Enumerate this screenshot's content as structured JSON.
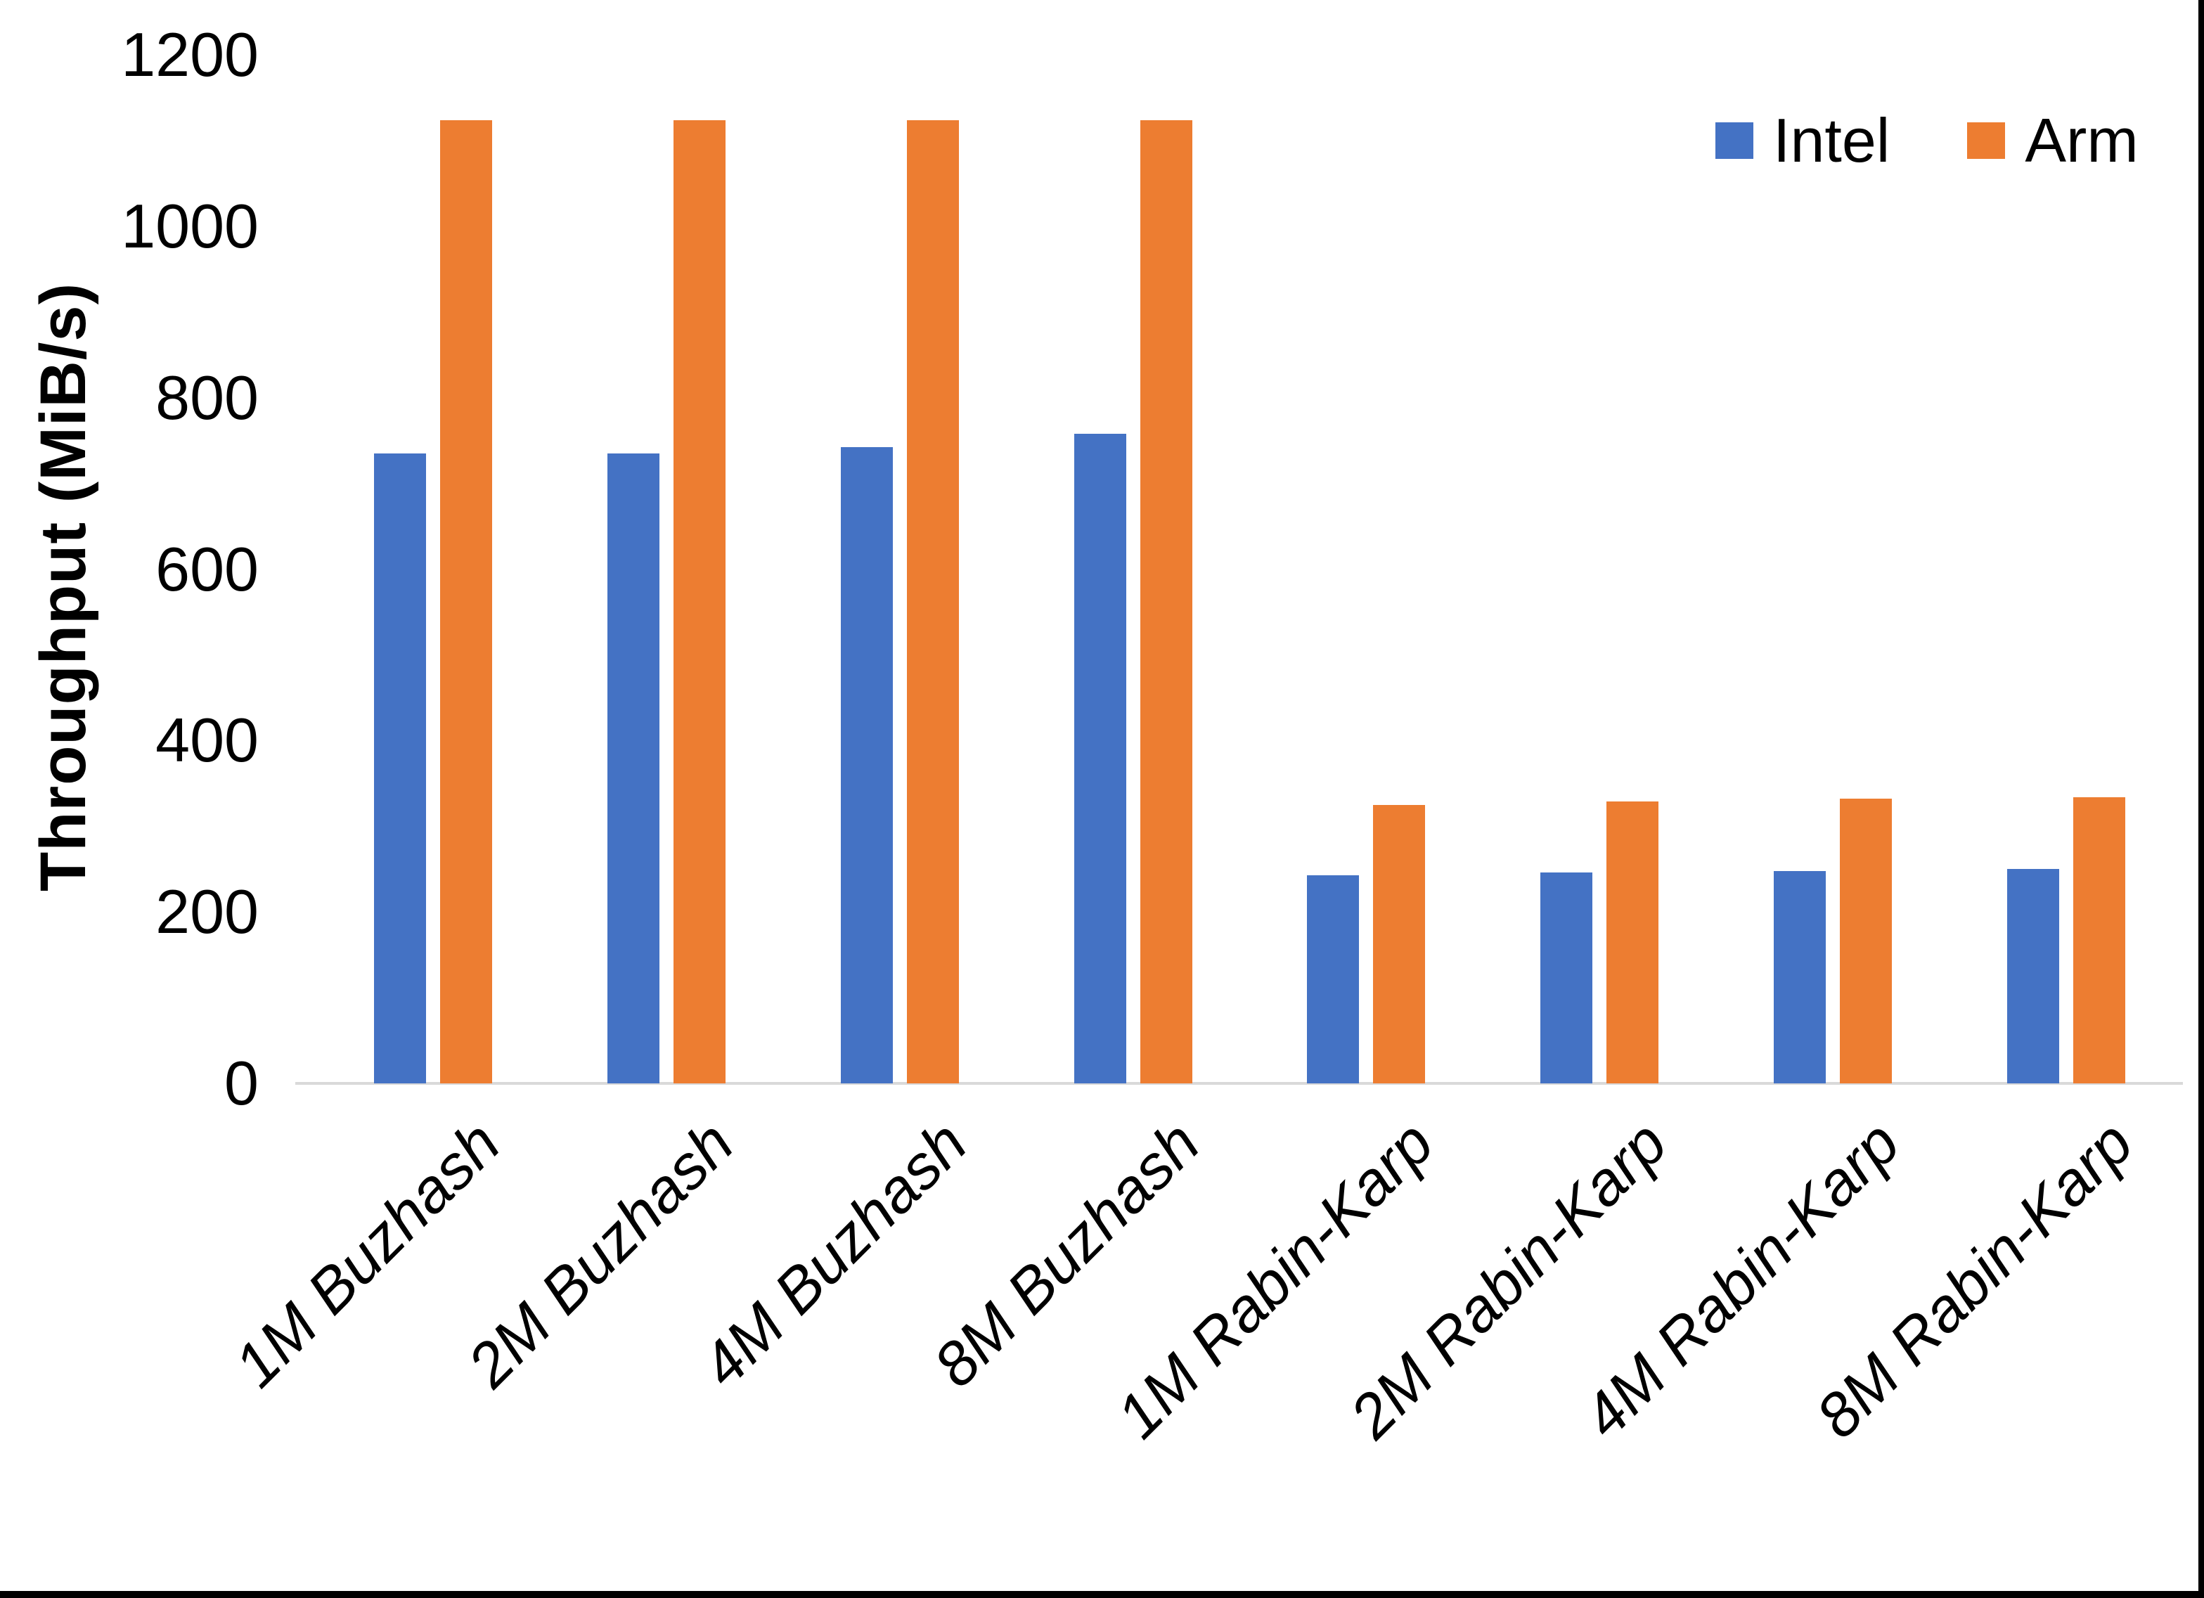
{
  "chart_data": {
    "type": "bar",
    "title": "",
    "xlabel": "",
    "ylabel": "Throughput (MiB/s)",
    "ylim": [
      0,
      1200
    ],
    "yticks": [
      0,
      200,
      400,
      600,
      800,
      1000,
      1200
    ],
    "grid": false,
    "legend_position": "top-right",
    "categories": [
      "1M Buzhash",
      "2M Buzhash",
      "4M Buzhash",
      "8M Buzhash",
      "1M Rabin-Karp",
      "2M Rabin-Karp",
      "4M Rabin-Karp",
      "8M Rabin-Karp"
    ],
    "series": [
      {
        "name": "Intel",
        "color": "#4472C4",
        "values": [
          735,
          735,
          742,
          758,
          243,
          246,
          248,
          250
        ]
      },
      {
        "name": "Arm",
        "color": "#ED7D31",
        "values": [
          1124,
          1124,
          1124,
          1124,
          325,
          329,
          332,
          334
        ]
      }
    ]
  },
  "colors": {
    "background": "#FFFFFF",
    "axis_line": "#D9D9D9",
    "text": "#000000",
    "frame_edge": "#000000"
  }
}
